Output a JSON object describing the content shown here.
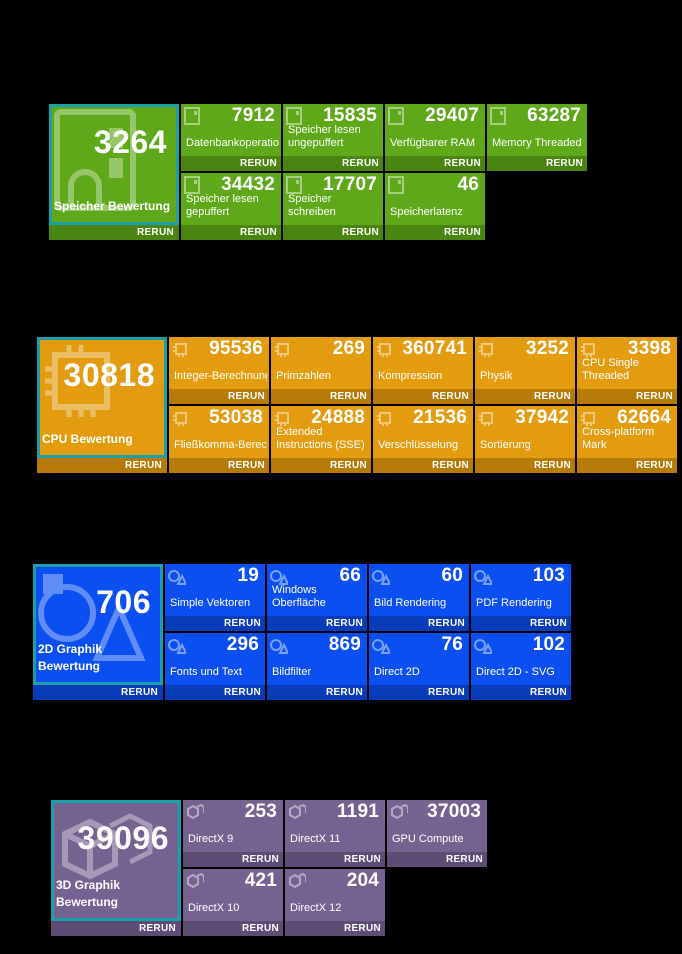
{
  "colors": {
    "memory": "#5ea819",
    "memory_bar": "#4a8511",
    "cpu": "#e39b0f",
    "cpu_bar": "#b57a08",
    "g2d": "#0b4ff0",
    "g2d_bar": "#083cb8",
    "g3d": "#766290",
    "g3d_bar": "#5d4c74",
    "frame": "#19a0a8"
  },
  "rerun_label": "RERUN",
  "memory": {
    "main": {
      "value": "3264",
      "label": "Speicher Bewertung",
      "icon": "memory-chip-icon"
    },
    "tiles": [
      {
        "value": "7912",
        "label": "Datenbankoperationen"
      },
      {
        "value": "15835",
        "label": "Speicher lesen ungepuffert"
      },
      {
        "value": "29407",
        "label": "Verfügbarer RAM"
      },
      {
        "value": "63287",
        "label": "Memory Threaded"
      },
      {
        "value": "34432",
        "label": "Speicher lesen gepuffert"
      },
      {
        "value": "17707",
        "label": "Speicher schreiben"
      },
      {
        "value": "46",
        "label": "Speicherlatenz"
      }
    ]
  },
  "cpu": {
    "main": {
      "value": "30818",
      "label": "CPU Bewertung",
      "icon": "cpu-chip-icon"
    },
    "tiles": [
      {
        "value": "95536",
        "label": "Integer-Berechnungen"
      },
      {
        "value": "269",
        "label": "Primzahlen"
      },
      {
        "value": "360741",
        "label": "Kompression"
      },
      {
        "value": "3252",
        "label": "Physik"
      },
      {
        "value": "3398",
        "label": "CPU Single Threaded"
      },
      {
        "value": "53038",
        "label": "Fließkomma-Berechnungen"
      },
      {
        "value": "24888",
        "label": "Extended Instructions (SSE)"
      },
      {
        "value": "21536",
        "label": "Verschlüsselung"
      },
      {
        "value": "37942",
        "label": "Sortierung"
      },
      {
        "value": "62664",
        "label": "Cross-platform Mark"
      }
    ]
  },
  "g2d": {
    "main": {
      "value": "706",
      "label": "2D Graphik Bewertung",
      "icon": "shapes-2d-icon"
    },
    "tiles": [
      {
        "value": "19",
        "label": "Simple Vektoren"
      },
      {
        "value": "66",
        "label": "Windows Oberfläche"
      },
      {
        "value": "60",
        "label": "Bild Rendering"
      },
      {
        "value": "103",
        "label": "PDF Rendering"
      },
      {
        "value": "296",
        "label": "Fonts und Text"
      },
      {
        "value": "869",
        "label": "Bildfilter"
      },
      {
        "value": "76",
        "label": "Direct 2D"
      },
      {
        "value": "102",
        "label": "Direct 2D - SVG"
      }
    ]
  },
  "g3d": {
    "main": {
      "value": "39096",
      "label": "3D Graphik Bewertung",
      "icon": "cubes-3d-icon"
    },
    "tiles": [
      {
        "value": "253",
        "label": "DirectX 9"
      },
      {
        "value": "1191",
        "label": "DirectX 11"
      },
      {
        "value": "37003",
        "label": "GPU Compute"
      },
      {
        "value": "421",
        "label": "DirectX 10"
      },
      {
        "value": "204",
        "label": "DirectX 12"
      }
    ]
  }
}
